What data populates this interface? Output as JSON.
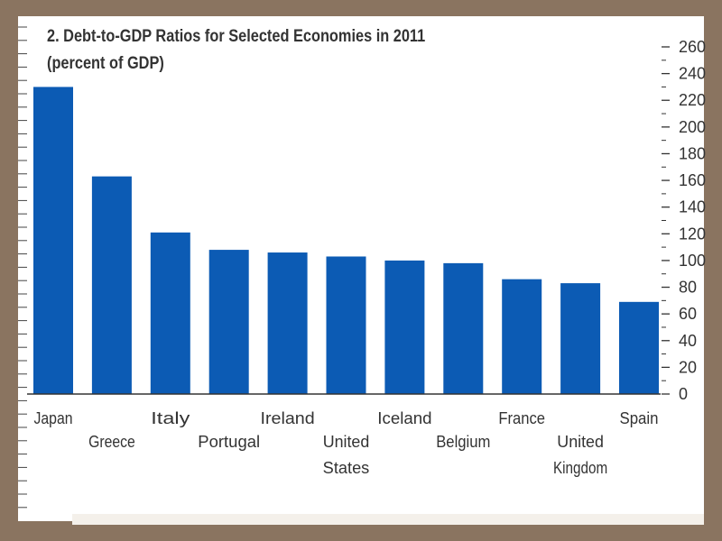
{
  "chart_data": {
    "type": "bar",
    "title": "2. Debt-to-GDP Ratios for Selected Economies in 2011",
    "subtitle": "(percent of GDP)",
    "xlabel": "",
    "ylabel": "",
    "categories": [
      "Japan",
      "Greece",
      "Italy",
      "Portugal",
      "Ireland",
      "United States",
      "Iceland",
      "Belgium",
      "France",
      "United Kingdom",
      "Spain"
    ],
    "category_lines": [
      [
        "Japan"
      ],
      [
        "Greece"
      ],
      [
        "Italy"
      ],
      [
        "Portugal"
      ],
      [
        "Ireland"
      ],
      [
        "United",
        "States"
      ],
      [
        "Iceland"
      ],
      [
        "Belgium"
      ],
      [
        "France"
      ],
      [
        "United",
        "Kingdom"
      ],
      [
        "Spain"
      ]
    ],
    "values": [
      230,
      163,
      121,
      108,
      106,
      103,
      100,
      98,
      86,
      83,
      69
    ],
    "ylim": [
      0,
      260
    ],
    "yticks": [
      0,
      20,
      40,
      60,
      80,
      100,
      120,
      140,
      160,
      180,
      200,
      220,
      240,
      260
    ],
    "y_axis_side": "right",
    "grid": false,
    "legend": "none",
    "colors": {
      "bar": "#0c5bb4",
      "text": "#333333",
      "axis": "#333333"
    }
  }
}
